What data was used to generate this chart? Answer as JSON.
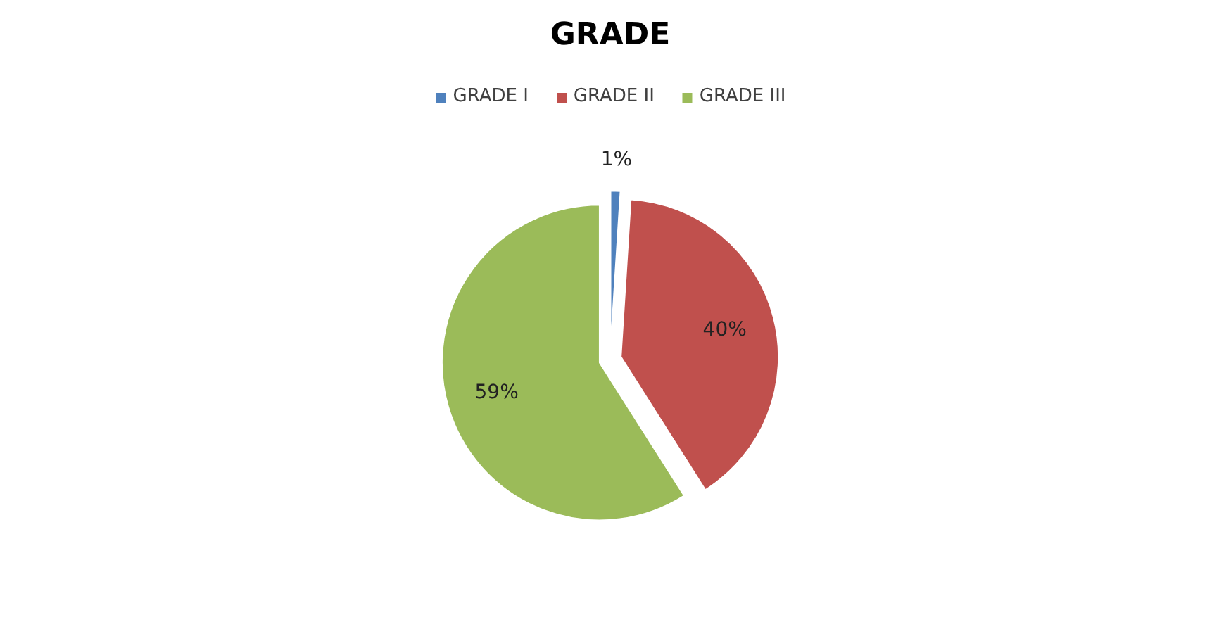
{
  "chart_data": {
    "type": "pie",
    "title": "GRADE",
    "categories": [
      "GRADE I",
      "GRADE II",
      "GRADE III"
    ],
    "values": [
      1,
      40,
      59
    ],
    "colors": [
      "#4f81bd",
      "#c0504d",
      "#9bbb59"
    ],
    "value_labels": [
      "1%",
      "40%",
      "59%"
    ],
    "legend": "top"
  }
}
